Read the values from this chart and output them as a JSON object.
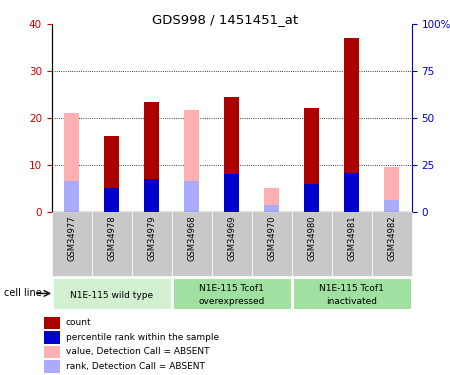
{
  "title": "GDS998 / 1451451_at",
  "samples": [
    "GSM34977",
    "GSM34978",
    "GSM34979",
    "GSM34968",
    "GSM34969",
    "GSM34970",
    "GSM34980",
    "GSM34981",
    "GSM34982"
  ],
  "red_count": [
    0,
    16.2,
    23.5,
    0,
    24.5,
    0,
    22.2,
    37.0,
    0
  ],
  "blue_rank": [
    0,
    5.0,
    7.0,
    0,
    8.0,
    0,
    6.0,
    8.2,
    0
  ],
  "pink_value": [
    21.0,
    0,
    0,
    21.8,
    0,
    5.2,
    0,
    0,
    9.5
  ],
  "lightblue_rank": [
    6.5,
    0,
    0,
    6.5,
    0,
    1.5,
    0,
    0,
    2.5
  ],
  "absent": [
    true,
    false,
    false,
    true,
    false,
    true,
    false,
    false,
    true
  ],
  "ylim_left": [
    0,
    40
  ],
  "ylim_right": [
    0,
    100
  ],
  "yticks_left": [
    0,
    10,
    20,
    30,
    40
  ],
  "yticks_right": [
    0,
    25,
    50,
    75,
    100
  ],
  "yticklabels_right": [
    "0",
    "25",
    "50",
    "75",
    "100%"
  ],
  "color_red": "#aa0000",
  "color_blue": "#0000cc",
  "color_pink": "#ffb0b0",
  "color_lightblue": "#aaaaff",
  "color_left_axis": "#cc0000",
  "color_right_axis": "#0000cc",
  "group_bg_color": "#c8c8c8",
  "group1_bg": "#d0f0d0",
  "group2_bg": "#a0e0a0",
  "group3_bg": "#a0e0a0",
  "group_info": [
    {
      "indices": [
        0,
        1,
        2
      ],
      "label": "N1E-115 wild type",
      "label2": ""
    },
    {
      "indices": [
        3,
        4,
        5
      ],
      "label": "N1E-115 Tcof1",
      "label2": "overexpressed"
    },
    {
      "indices": [
        6,
        7,
        8
      ],
      "label": "N1E-115 Tcof1",
      "label2": "inactivated"
    }
  ],
  "legend_items": [
    {
      "label": "count",
      "color": "#aa0000"
    },
    {
      "label": "percentile rank within the sample",
      "color": "#0000cc"
    },
    {
      "label": "value, Detection Call = ABSENT",
      "color": "#ffb0b0"
    },
    {
      "label": "rank, Detection Call = ABSENT",
      "color": "#aaaaff"
    }
  ],
  "cell_line_label": "cell line"
}
